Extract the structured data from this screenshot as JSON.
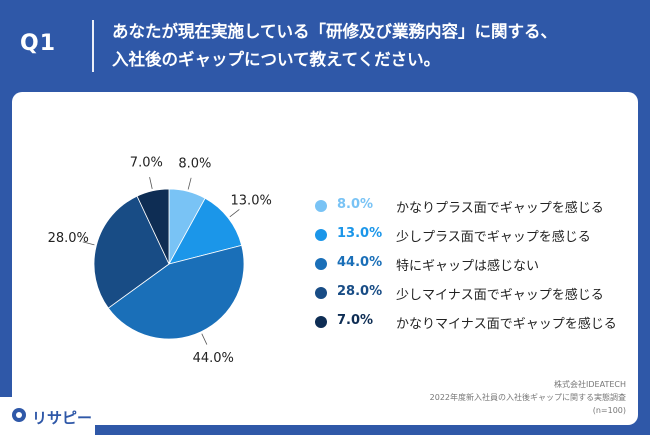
{
  "header": {
    "q_label": "Q1",
    "question_line1": "あなたが現在実施している「研修及び業務内容」に関する、",
    "question_line2": "入社後のギャップについて教えてください。"
  },
  "chart_data": {
    "type": "pie",
    "title": "",
    "start_angle_deg": 0,
    "direction": "clockwise",
    "slices": [
      {
        "label": "かなりプラス面でギャップを感じる",
        "value": 8.0,
        "value_label": "8.0%",
        "color": "#79c3f5"
      },
      {
        "label": "少しプラス面でギャップを感じる",
        "value": 13.0,
        "value_label": "13.0%",
        "color": "#1b96e9"
      },
      {
        "label": "特にギャップは感じない",
        "value": 44.0,
        "value_label": "44.0%",
        "color": "#1a6fb8"
      },
      {
        "label": "少しマイナス面でギャップを感じる",
        "value": 28.0,
        "value_label": "28.0%",
        "color": "#184c85"
      },
      {
        "label": "かなりマイナス面でギャップを感じる",
        "value": 7.0,
        "value_label": "7.0%",
        "color": "#0e2d54"
      }
    ],
    "legend_position": "right"
  },
  "source": {
    "company": "株式会社IDEATECH",
    "survey": "2022年度新入社員の入社後ギャップに関する実態調査",
    "n": "(n=100)"
  },
  "logo": {
    "text": "リサピー"
  }
}
